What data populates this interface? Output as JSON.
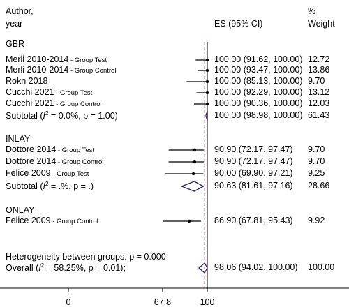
{
  "chart_data": {
    "type": "forest",
    "header": {
      "author_line1": "Author,",
      "author_line2": "year",
      "es_label": "ES (95% CI)",
      "weight_line1": "%",
      "weight_line2": "Weight"
    },
    "xlim": [
      0,
      100
    ],
    "x_ticks": [
      0,
      67.8,
      100
    ],
    "x_tick_labels": [
      "0",
      "67.8",
      "100"
    ],
    "null_line": 100,
    "overall_line": 98.06,
    "groups": [
      {
        "name": "GBR",
        "studies": [
          {
            "study": "Merli 2010-2014",
            "note": " - Group Test",
            "es": 100.0,
            "lo": 91.62,
            "hi": 100.0,
            "es_text": "100.00 (91.62, 100.00)",
            "weight": "12.72"
          },
          {
            "study": "Merli 2010-2014",
            "note": " - Group Control",
            "es": 100.0,
            "lo": 93.47,
            "hi": 100.0,
            "es_text": "100.00 (93.47, 100.00)",
            "weight": "13.86"
          },
          {
            "study": "Rokn 2018",
            "note": "",
            "es": 100.0,
            "lo": 85.13,
            "hi": 100.0,
            "es_text": "100.00 (85.13, 100.00)",
            "weight": "9.70"
          },
          {
            "study": "Cucchi 2021",
            "note": " - Group Test",
            "es": 100.0,
            "lo": 92.29,
            "hi": 100.0,
            "es_text": "100.00 (92.29, 100.00)",
            "weight": "13.12"
          },
          {
            "study": "Cucchi 2021",
            "note": " - Group Control",
            "es": 100.0,
            "lo": 90.36,
            "hi": 100.0,
            "es_text": "100.00 (90.36, 100.00)",
            "weight": "12.03"
          }
        ],
        "subtotal": {
          "label_pre": "Subtotal  (",
          "i2": "I",
          "sup": "2",
          "label_post": " = 0.0%, p = 1.00)",
          "es": 100.0,
          "lo": 98.98,
          "hi": 100.0,
          "es_text": "100.00 (98.98, 100.00)",
          "weight": "61.43"
        }
      },
      {
        "name": "INLAY",
        "studies": [
          {
            "study": "Dottore 2014",
            "note": " - Group Test",
            "es": 90.9,
            "lo": 72.17,
            "hi": 97.47,
            "es_text": "90.90 (72.17, 97.47)",
            "weight": "9.70"
          },
          {
            "study": "Dottore 2014",
            "note": " - Group Control",
            "es": 90.9,
            "lo": 72.17,
            "hi": 97.47,
            "es_text": "90.90 (72.17, 97.47)",
            "weight": "9.70"
          },
          {
            "study": "Felice 2009",
            "note": " - Group Test",
            "es": 90.0,
            "lo": 69.9,
            "hi": 97.21,
            "es_text": "90.00 (69.90, 97.21)",
            "weight": "9.25"
          }
        ],
        "subtotal": {
          "label_pre": "Subtotal  (",
          "i2": "I",
          "sup": "2",
          "label_post": " = .%, p = .)",
          "es": 90.63,
          "lo": 81.61,
          "hi": 97.16,
          "es_text": "90.63 (81.61, 97.16)",
          "weight": "28.66"
        }
      },
      {
        "name": "ONLAY",
        "studies": [
          {
            "study": "Felice 2009",
            "note": " - Group Control",
            "es": 86.9,
            "lo": 67.81,
            "hi": 95.43,
            "es_text": "86.90 (67.81, 95.43)",
            "weight": "9.92"
          }
        ]
      }
    ],
    "heterogeneity": "Heterogeneity between groups: p = 0.000",
    "overall": {
      "label_pre": "Overall  (",
      "i2": "I",
      "sup": "2",
      "label_post": " = 58.25%, p = 0.01);",
      "es": 98.06,
      "lo": 94.02,
      "hi": 100.0,
      "es_text": "98.06 (94.02, 100.00)",
      "weight": "100.00"
    },
    "colors": {
      "diamond": "#2b1f6b",
      "dashed_line": "#a0506e",
      "marker": "#000000"
    }
  }
}
